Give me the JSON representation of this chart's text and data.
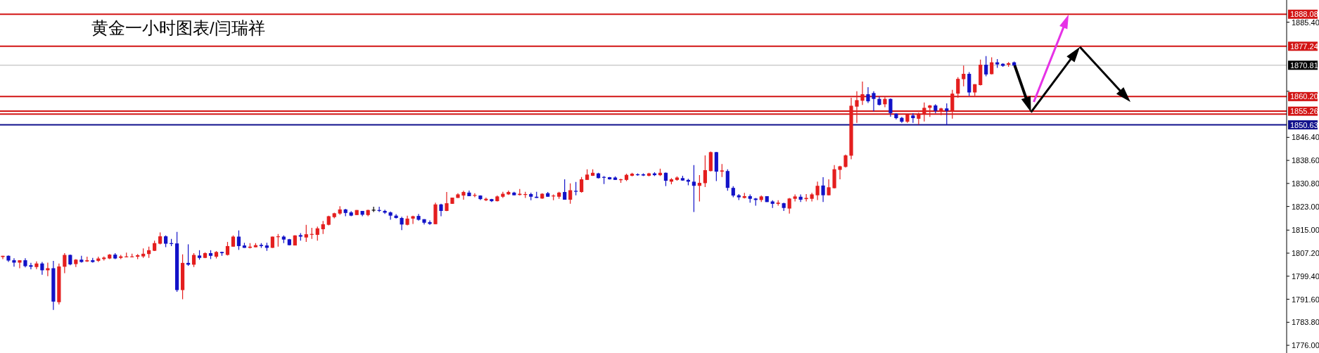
{
  "chart_data": {
    "type": "candlestick",
    "title": "黄金一小时图表/闫瑞祥",
    "tick_labels": "y",
    "categories": [
      null,
      null,
      null,
      null,
      null,
      null,
      null,
      null,
      null,
      null,
      null,
      null,
      null,
      null,
      null,
      null,
      null,
      null,
      null,
      null,
      null,
      null,
      null,
      null,
      null,
      null,
      null,
      null,
      null,
      null,
      null,
      null,
      null,
      null,
      null,
      null,
      null,
      null,
      null,
      null,
      null,
      null,
      null,
      null,
      null,
      null,
      null,
      null,
      null,
      null,
      null,
      null,
      null,
      null,
      null,
      null,
      null,
      null,
      null,
      null,
      null,
      null,
      null,
      null,
      null,
      null,
      null,
      null,
      null,
      null,
      null,
      null,
      null,
      null,
      null,
      null,
      null,
      null,
      null,
      null,
      null,
      null,
      null,
      null,
      null,
      null,
      null,
      null,
      null,
      null,
      null,
      null,
      null,
      null,
      null,
      null,
      null,
      null,
      null,
      null,
      null,
      null,
      null,
      null,
      null,
      null,
      null,
      null,
      null,
      null,
      null,
      null,
      null,
      null,
      null,
      null,
      null,
      null,
      null,
      null,
      null,
      null,
      null,
      null,
      null,
      null,
      null,
      null,
      null,
      null,
      null,
      null,
      null,
      null,
      null,
      null,
      null,
      null,
      null,
      null,
      null,
      null,
      null,
      null,
      null,
      null,
      null,
      null,
      null,
      null,
      null,
      null,
      null,
      null,
      null,
      null,
      null,
      null,
      null,
      null,
      null,
      null,
      null,
      null,
      null,
      null,
      null,
      null,
      null,
      null,
      null,
      null,
      null,
      null,
      null,
      null,
      null,
      null,
      null,
      null,
      null,
      null,
      null,
      null,
      null,
      null,
      null,
      null,
      null,
      null,
      null,
      null,
      null,
      null,
      null,
      null,
      null,
      null,
      null,
      null,
      null,
      null,
      null,
      null,
      null,
      null,
      null,
      null,
      null,
      null,
      null,
      null,
      null,
      null,
      null,
      null,
      null,
      null,
      null,
      null,
      null,
      null,
      null,
      null,
      null,
      null,
      null,
      null,
      null
    ],
    "ohlc": [
      [
        1805.9,
        1806.3,
        1805.2,
        1806.3
      ],
      [
        1806.3,
        1806.4,
        1804.2,
        1804.7
      ],
      [
        1804.8,
        1805.5,
        1802.6,
        1804.0
      ],
      [
        1804.0,
        1804.8,
        1802.1,
        1804.8
      ],
      [
        1804.8,
        1805.5,
        1802.4,
        1802.8
      ],
      [
        1803.1,
        1803.9,
        1801.7,
        1802.6
      ],
      [
        1802.5,
        1804.4,
        1801.8,
        1803.7
      ],
      [
        1803.7,
        1804.2,
        1799.9,
        1801.4
      ],
      [
        1801.4,
        1804.0,
        1799.4,
        1802.1
      ],
      [
        1802.1,
        1804.6,
        1788.0,
        1790.8
      ],
      [
        1790.6,
        1803.7,
        1789.8,
        1802.7
      ],
      [
        1802.6,
        1807.2,
        1800.4,
        1806.6
      ],
      [
        1806.6,
        1806.7,
        1803.1,
        1803.4
      ],
      [
        1803.5,
        1805.2,
        1802.5,
        1805.0
      ],
      [
        1805.0,
        1806.3,
        1804.0,
        1804.2
      ],
      [
        1804.4,
        1806.0,
        1804.2,
        1804.8
      ],
      [
        1804.8,
        1805.6,
        1804.0,
        1804.2
      ],
      [
        1804.6,
        1806.0,
        1804.2,
        1805.4
      ],
      [
        1805.2,
        1806.1,
        1804.7,
        1805.7
      ],
      [
        1805.4,
        1806.9,
        1805.2,
        1806.7
      ],
      [
        1806.7,
        1807.2,
        1805.2,
        1805.4
      ],
      [
        1805.6,
        1806.6,
        1805.2,
        1806.1
      ],
      [
        1805.9,
        1807.4,
        1805.8,
        1806.1
      ],
      [
        1805.9,
        1807.0,
        1805.8,
        1806.1
      ],
      [
        1806.0,
        1806.9,
        1805.2,
        1806.5
      ],
      [
        1806.1,
        1808.8,
        1805.6,
        1807.0
      ],
      [
        1806.9,
        1809.4,
        1805.6,
        1808.2
      ],
      [
        1808.0,
        1811.4,
        1807.9,
        1810.6
      ],
      [
        1810.4,
        1814.2,
        1810.2,
        1812.9
      ],
      [
        1812.9,
        1813.2,
        1809.2,
        1810.4
      ],
      [
        1810.6,
        1812.0,
        1809.6,
        1810.5
      ],
      [
        1810.5,
        1814.4,
        1794.1,
        1794.7
      ],
      [
        1794.7,
        1806.8,
        1791.6,
        1803.9
      ],
      [
        1803.9,
        1810.2,
        1802.9,
        1803.3
      ],
      [
        1803.3,
        1807.2,
        1802.5,
        1806.6
      ],
      [
        1806.4,
        1808.2,
        1805.0,
        1805.6
      ],
      [
        1805.6,
        1807.5,
        1805.5,
        1807.2
      ],
      [
        1807.2,
        1808.2,
        1805.2,
        1806.3
      ],
      [
        1806.0,
        1807.9,
        1805.4,
        1807.6
      ],
      [
        1807.6,
        1807.7,
        1806.3,
        1807.2
      ],
      [
        1806.6,
        1811.0,
        1806.4,
        1809.6
      ],
      [
        1809.4,
        1813.2,
        1809.4,
        1812.8
      ],
      [
        1812.8,
        1814.9,
        1808.3,
        1809.6
      ],
      [
        1809.8,
        1810.7,
        1809.0,
        1809.0
      ],
      [
        1809.0,
        1810.6,
        1808.8,
        1809.4
      ],
      [
        1809.2,
        1810.6,
        1809.2,
        1809.9
      ],
      [
        1810.0,
        1810.6,
        1809.0,
        1809.6
      ],
      [
        1809.8,
        1810.7,
        1808.0,
        1809.0
      ],
      [
        1809.0,
        1812.8,
        1809.0,
        1812.8
      ],
      [
        1812.7,
        1813.7,
        1809.4,
        1812.9
      ],
      [
        1812.8,
        1813.2,
        1810.6,
        1811.8
      ],
      [
        1811.9,
        1812.0,
        1809.8,
        1809.9
      ],
      [
        1809.8,
        1813.3,
        1809.8,
        1813.2
      ],
      [
        1813.3,
        1814.0,
        1811.4,
        1812.8
      ],
      [
        1812.5,
        1816.8,
        1811.0,
        1813.6
      ],
      [
        1813.6,
        1815.8,
        1812.0,
        1813.7
      ],
      [
        1813.4,
        1816.2,
        1811.4,
        1815.6
      ],
      [
        1815.3,
        1818.1,
        1813.7,
        1817.0
      ],
      [
        1816.8,
        1819.9,
        1816.6,
        1819.7
      ],
      [
        1819.4,
        1820.9,
        1819.0,
        1820.7
      ],
      [
        1820.6,
        1823.1,
        1820.2,
        1822.0
      ],
      [
        1822.0,
        1822.2,
        1819.7,
        1820.8
      ],
      [
        1821.0,
        1821.4,
        1819.7,
        1819.9
      ],
      [
        1820.1,
        1821.8,
        1820.1,
        1821.8
      ],
      [
        1821.5,
        1821.5,
        1819.7,
        1820.2
      ],
      [
        1820.1,
        1821.9,
        1819.7,
        1821.8
      ],
      [
        1821.9,
        1822.9,
        1821.1,
        1821.8
      ],
      [
        1821.8,
        1822.9,
        1821.1,
        1821.5
      ],
      [
        1821.5,
        1821.9,
        1820.5,
        1820.9
      ],
      [
        1821.0,
        1821.3,
        1818.5,
        1819.9
      ],
      [
        1819.9,
        1820.4,
        1818.9,
        1819.1
      ],
      [
        1819.1,
        1819.5,
        1815.0,
        1816.9
      ],
      [
        1816.8,
        1819.9,
        1816.6,
        1818.9
      ],
      [
        1818.9,
        1819.9,
        1817.1,
        1819.7
      ],
      [
        1819.8,
        1820.5,
        1818.2,
        1818.5
      ],
      [
        1818.7,
        1818.7,
        1816.9,
        1817.5
      ],
      [
        1817.7,
        1818.3,
        1816.8,
        1817.1
      ],
      [
        1817.0,
        1824.3,
        1817.0,
        1823.7
      ],
      [
        1823.7,
        1823.9,
        1819.7,
        1821.5
      ],
      [
        1821.5,
        1827.9,
        1821.4,
        1824.1
      ],
      [
        1823.9,
        1826.0,
        1823.9,
        1826.0
      ],
      [
        1825.9,
        1827.5,
        1825.9,
        1827.1
      ],
      [
        1826.7,
        1828.3,
        1825.3,
        1827.9
      ],
      [
        1827.7,
        1828.4,
        1826.5,
        1826.5
      ],
      [
        1826.7,
        1827.5,
        1826.1,
        1826.9
      ],
      [
        1826.7,
        1826.8,
        1825.2,
        1825.5
      ],
      [
        1825.1,
        1826.0,
        1824.8,
        1825.6
      ],
      [
        1825.5,
        1825.6,
        1824.5,
        1824.8
      ],
      [
        1824.8,
        1826.7,
        1824.7,
        1826.4
      ],
      [
        1826.3,
        1828.0,
        1825.9,
        1827.3
      ],
      [
        1827.1,
        1828.4,
        1826.9,
        1827.9
      ],
      [
        1827.7,
        1828.0,
        1826.8,
        1826.8
      ],
      [
        1826.9,
        1828.9,
        1826.7,
        1827.3
      ],
      [
        1827.1,
        1828.0,
        1825.9,
        1827.2
      ],
      [
        1827.2,
        1827.7,
        1825.1,
        1826.3
      ],
      [
        1826.3,
        1828.0,
        1825.9,
        1825.9
      ],
      [
        1825.7,
        1827.5,
        1825.6,
        1827.3
      ],
      [
        1827.5,
        1827.9,
        1826.3,
        1826.3
      ],
      [
        1826.5,
        1827.1,
        1825.1,
        1826.7
      ],
      [
        1826.3,
        1828.0,
        1825.6,
        1827.7
      ],
      [
        1827.9,
        1832.2,
        1825.3,
        1825.3
      ],
      [
        1825.3,
        1830.8,
        1823.9,
        1828.5
      ],
      [
        1828.3,
        1831.3,
        1826.8,
        1828.0
      ],
      [
        1827.9,
        1833.0,
        1827.7,
        1832.2
      ],
      [
        1832.0,
        1835.6,
        1832.0,
        1833.8
      ],
      [
        1833.4,
        1835.6,
        1833.3,
        1834.4
      ],
      [
        1834.2,
        1834.4,
        1832.5,
        1832.6
      ],
      [
        1833.0,
        1833.3,
        1830.6,
        1832.9
      ],
      [
        1832.9,
        1833.0,
        1832.1,
        1832.2
      ],
      [
        1832.8,
        1833.2,
        1832.0,
        1832.0
      ],
      [
        1832.0,
        1832.4,
        1831.0,
        1832.2
      ],
      [
        1832.0,
        1834.1,
        1831.6,
        1833.7
      ],
      [
        1833.4,
        1834.4,
        1833.2,
        1834.1
      ],
      [
        1833.9,
        1834.2,
        1833.4,
        1833.6
      ],
      [
        1833.9,
        1834.2,
        1833.3,
        1833.5
      ],
      [
        1833.4,
        1834.4,
        1833.2,
        1834.2
      ],
      [
        1834.2,
        1834.6,
        1833.3,
        1833.6
      ],
      [
        1833.6,
        1835.8,
        1833.3,
        1834.4
      ],
      [
        1834.4,
        1834.5,
        1829.9,
        1831.7
      ],
      [
        1831.4,
        1832.6,
        1830.5,
        1832.2
      ],
      [
        1832.0,
        1833.2,
        1831.7,
        1832.8
      ],
      [
        1832.6,
        1833.4,
        1831.7,
        1831.8
      ],
      [
        1832.0,
        1832.4,
        1830.2,
        1831.4
      ],
      [
        1831.4,
        1837.0,
        1821.1,
        1830.0
      ],
      [
        1830.0,
        1833.6,
        1824.7,
        1831.0
      ],
      [
        1830.9,
        1840.3,
        1829.6,
        1835.3
      ],
      [
        1835.0,
        1841.6,
        1834.9,
        1841.4
      ],
      [
        1841.4,
        1841.5,
        1831.6,
        1834.8
      ],
      [
        1834.8,
        1837.4,
        1833.0,
        1835.2
      ],
      [
        1835.0,
        1835.6,
        1828.3,
        1829.3
      ],
      [
        1829.3,
        1829.9,
        1826.1,
        1826.7
      ],
      [
        1826.8,
        1827.2,
        1825.2,
        1826.1
      ],
      [
        1825.9,
        1827.6,
        1825.7,
        1826.5
      ],
      [
        1826.5,
        1827.1,
        1824.3,
        1825.6
      ],
      [
        1825.7,
        1825.9,
        1823.3,
        1825.2
      ],
      [
        1825.2,
        1826.7,
        1824.5,
        1826.4
      ],
      [
        1826.5,
        1826.5,
        1824.5,
        1824.5
      ],
      [
        1824.7,
        1825.1,
        1822.5,
        1823.9
      ],
      [
        1823.9,
        1825.1,
        1823.3,
        1824.3
      ],
      [
        1824.1,
        1824.3,
        1821.5,
        1822.5
      ],
      [
        1822.3,
        1825.9,
        1820.6,
        1825.7
      ],
      [
        1825.6,
        1827.1,
        1824.7,
        1826.4
      ],
      [
        1826.3,
        1827.1,
        1824.5,
        1825.3
      ],
      [
        1825.5,
        1827.2,
        1824.7,
        1825.9
      ],
      [
        1825.6,
        1827.6,
        1824.7,
        1827.1
      ],
      [
        1826.8,
        1831.4,
        1825.2,
        1830.0
      ],
      [
        1830.1,
        1832.9,
        1824.5,
        1826.8
      ],
      [
        1826.8,
        1832.2,
        1826.7,
        1829.5
      ],
      [
        1829.2,
        1837.0,
        1829.1,
        1835.6
      ],
      [
        1835.4,
        1836.8,
        1832.2,
        1836.6
      ],
      [
        1836.4,
        1840.6,
        1836.2,
        1840.3
      ],
      [
        1840.2,
        1859.8,
        1839.0,
        1857.1
      ],
      [
        1856.8,
        1862.0,
        1851.3,
        1859.0
      ],
      [
        1858.8,
        1865.3,
        1857.4,
        1861.0
      ],
      [
        1861.0,
        1863.4,
        1858.0,
        1858.6
      ],
      [
        1861.4,
        1862.0,
        1855.2,
        1859.4
      ],
      [
        1859.4,
        1860.2,
        1857.2,
        1857.4
      ],
      [
        1857.6,
        1860.0,
        1856.6,
        1859.4
      ],
      [
        1859.4,
        1859.6,
        1853.4,
        1854.6
      ],
      [
        1854.4,
        1854.6,
        1852.5,
        1852.9
      ],
      [
        1853.0,
        1853.3,
        1851.3,
        1851.7
      ],
      [
        1851.7,
        1854.4,
        1851.3,
        1854.1
      ],
      [
        1853.8,
        1854.6,
        1851.3,
        1852.9
      ],
      [
        1852.7,
        1854.8,
        1850.7,
        1854.1
      ],
      [
        1854.2,
        1858.2,
        1851.8,
        1856.4
      ],
      [
        1856.4,
        1857.4,
        1853.3,
        1857.2
      ],
      [
        1857.2,
        1857.6,
        1854.6,
        1855.4
      ],
      [
        1855.2,
        1856.4,
        1853.9,
        1856.2
      ],
      [
        1856.2,
        1857.9,
        1850.6,
        1855.4
      ],
      [
        1855.2,
        1862.5,
        1852.7,
        1861.2
      ],
      [
        1861.2,
        1866.8,
        1859.8,
        1866.2
      ],
      [
        1866.1,
        1870.7,
        1863.7,
        1867.9
      ],
      [
        1867.9,
        1868.5,
        1860.4,
        1861.6
      ],
      [
        1861.6,
        1864.4,
        1860.4,
        1864.4
      ],
      [
        1864.1,
        1872.7,
        1864.0,
        1871.0
      ],
      [
        1871.0,
        1873.9,
        1867.1,
        1867.7
      ],
      [
        1867.8,
        1873.5,
        1867.7,
        1871.8
      ],
      [
        1871.8,
        1872.9,
        1869.9,
        1871.1
      ],
      [
        1871.3,
        1871.5,
        1870.3,
        1870.6
      ],
      [
        1871.0,
        1871.9,
        1870.3,
        1871.5
      ],
      [
        1871.8,
        1872.1,
        1870.1,
        1870.7
      ],
      null,
      null,
      null,
      null,
      null,
      null,
      null,
      null,
      null,
      null,
      null,
      null,
      null,
      null,
      null,
      null,
      null,
      null,
      null,
      null,
      null,
      null,
      null,
      null,
      null,
      null,
      null,
      null,
      null,
      null,
      null,
      null,
      null,
      null,
      null,
      null,
      null,
      null,
      null,
      null,
      null,
      null,
      null,
      null,
      null,
      null,
      null,
      null
    ],
    "colors": [
      "#e41e1e",
      "#1212c8",
      "#1212c8",
      "#e41e1e",
      "#1212c8",
      "#1212c8",
      "#e41e1e",
      "#1212c8",
      "#e41e1e",
      "#1212c8",
      "#e41e1e",
      "#e41e1e",
      "#1212c8",
      "#e41e1e",
      "#1212c8",
      "#e41e1e",
      "#1212c8",
      "#e41e1e",
      "#e41e1e",
      "#e41e1e",
      "#1212c8",
      "#e41e1e",
      "#e41e1e",
      "#e41e1e",
      "#e41e1e",
      "#e41e1e",
      "#e41e1e",
      "#e41e1e",
      "#e41e1e",
      "#1212c8",
      "#1212c8",
      "#1212c8",
      "#e41e1e",
      "#1212c8",
      "#e41e1e",
      "#1212c8",
      "#e41e1e",
      "#1212c8",
      "#e41e1e",
      "#1212c8",
      "#e41e1e",
      "#e41e1e",
      "#1212c8",
      "#1212c8",
      "#e41e1e",
      "#e41e1e",
      "#1212c8",
      "#1212c8",
      "#e41e1e",
      "#e41e1e",
      "#1212c8",
      "#1212c8",
      "#e41e1e",
      "#1212c8",
      "#e41e1e",
      "#e41e1e",
      "#e41e1e",
      "#e41e1e",
      "#e41e1e",
      "#e41e1e",
      "#e41e1e",
      "#1212c8",
      "#1212c8",
      "#e41e1e",
      "#1212c8",
      "#e41e1e",
      "#000000",
      "#1212c8",
      "#1212c8",
      "#1212c8",
      "#1212c8",
      "#1212c8",
      "#e41e1e",
      "#e41e1e",
      "#1212c8",
      "#1212c8",
      "#1212c8",
      "#e41e1e",
      "#1212c8",
      "#e41e1e",
      "#e41e1e",
      "#e41e1e",
      "#e41e1e",
      "#1212c8",
      "#e41e1e",
      "#1212c8",
      "#e41e1e",
      "#1212c8",
      "#e41e1e",
      "#e41e1e",
      "#e41e1e",
      "#1212c8",
      "#e41e1e",
      "#e41e1e",
      "#1212c8",
      "#1212c8",
      "#e41e1e",
      "#1212c8",
      "#e41e1e",
      "#e41e1e",
      "#1212c8",
      "#e41e1e",
      "#1212c8",
      "#e41e1e",
      "#e41e1e",
      "#e41e1e",
      "#1212c8",
      "#1212c8",
      "#1212c8",
      "#1212c8",
      "#e41e1e",
      "#e41e1e",
      "#e41e1e",
      "#1212c8",
      "#1212c8",
      "#e41e1e",
      "#1212c8",
      "#e41e1e",
      "#1212c8",
      "#e41e1e",
      "#e41e1e",
      "#1212c8",
      "#1212c8",
      "#1212c8",
      "#e41e1e",
      "#e41e1e",
      "#e41e1e",
      "#1212c8",
      "#e41e1e",
      "#1212c8",
      "#1212c8",
      "#1212c8",
      "#e41e1e",
      "#1212c8",
      "#1212c8",
      "#e41e1e",
      "#1212c8",
      "#1212c8",
      "#e41e1e",
      "#1212c8",
      "#e41e1e",
      "#e41e1e",
      "#1212c8",
      "#e41e1e",
      "#e41e1e",
      "#e41e1e",
      "#1212c8",
      "#e41e1e",
      "#e41e1e",
      "#e41e1e",
      "#e41e1e",
      "#e41e1e",
      "#e41e1e",
      "#e41e1e",
      "#1212c8",
      "#1212c8",
      "#1212c8",
      "#e41e1e",
      "#1212c8",
      "#1212c8",
      "#1212c8",
      "#e41e1e",
      "#1212c8",
      "#e41e1e",
      "#e41e1e",
      "#e41e1e",
      "#1212c8",
      "#e41e1e",
      "#1212c8",
      "#e41e1e",
      "#e41e1e",
      "#e41e1e",
      "#1212c8",
      "#e41e1e",
      "#e41e1e",
      "#1212c8",
      "#e41e1e",
      "#1212c8",
      "#1212c8",
      "#e41e1e",
      "#1212c8",
      null,
      null,
      null,
      null,
      null,
      null,
      null,
      null,
      null,
      null,
      null,
      null,
      null,
      null,
      null,
      null,
      null,
      null,
      null,
      null,
      null,
      null,
      null,
      null,
      null,
      null,
      null,
      null,
      null,
      null,
      null,
      null,
      null,
      null,
      null,
      null,
      null,
      null,
      null,
      null,
      null,
      null,
      null,
      null,
      null,
      null,
      null,
      null
    ],
    "ylim": [
      1773.4,
      1892.9
    ],
    "yticks": [
      {
        "value": 1885.4,
        "label": "1885.40"
      },
      {
        "value": 1862.0,
        "label": null
      },
      {
        "value": 1846.4,
        "label": "1846.40"
      },
      {
        "value": 1838.6,
        "label": "1838.60"
      },
      {
        "value": 1830.8,
        "label": "1830.80"
      },
      {
        "value": 1823.0,
        "label": "1823.00"
      },
      {
        "value": 1815.0,
        "label": "1815.00"
      },
      {
        "value": 1807.2,
        "label": "1807.20"
      },
      {
        "value": 1799.4,
        "label": "1799.40"
      },
      {
        "value": 1791.6,
        "label": "1791.60"
      },
      {
        "value": 1783.8,
        "label": "1783.80"
      },
      {
        "value": 1776.0,
        "label": "1776.00"
      }
    ],
    "ref_lines": [
      {
        "axis": "y",
        "value": 1888.08,
        "label": "1888.08",
        "color": "#d21414"
      },
      {
        "axis": "y",
        "value": 1877.24,
        "label": "1877.24",
        "color": "#d21414"
      },
      {
        "axis": "y",
        "value": 1870.81,
        "label": "1870.81",
        "color": "#b4b4b4"
      },
      {
        "axis": "y",
        "value": 1860.2,
        "label": "1860.20",
        "color": "#d21414"
      },
      {
        "axis": "y",
        "value": 1855.26,
        "label": "1855.26",
        "color": "#d21414"
      },
      {
        "axis": "y",
        "value": 1854.3,
        "label": null,
        "color": "#d21414"
      },
      {
        "axis": "y",
        "value": 1850.63,
        "label": "1850.63",
        "color": "#10108c"
      }
    ]
  }
}
